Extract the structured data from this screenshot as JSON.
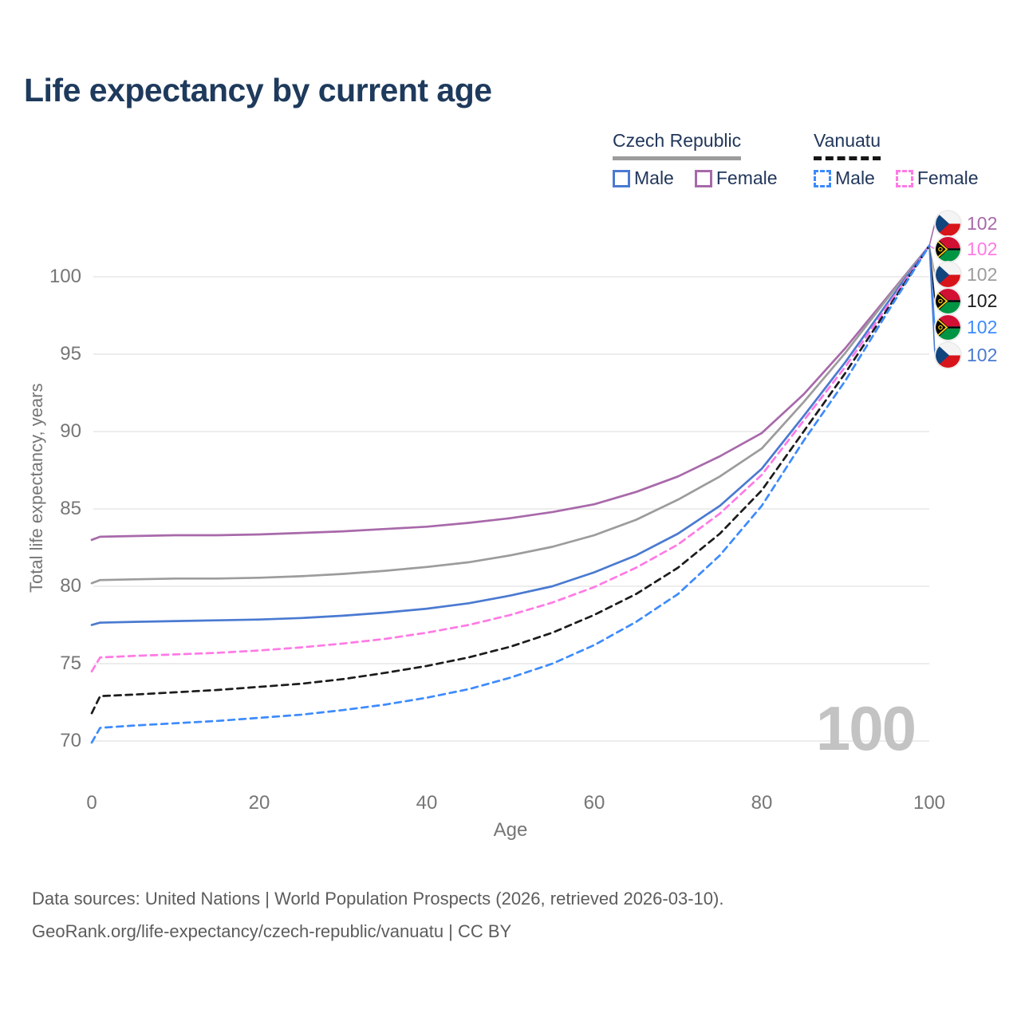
{
  "title": "Life expectancy by current age",
  "legend": {
    "groups": [
      {
        "name": "Czech Republic",
        "line_style": "solid",
        "underline_color": "#9c9c9c",
        "items": [
          {
            "label": "Male",
            "color": "#4a7ad1",
            "dash": false
          },
          {
            "label": "Female",
            "color": "#a869aa",
            "dash": false
          }
        ]
      },
      {
        "name": "Vanuatu",
        "line_style": "dashed",
        "underline_color": "#161616",
        "items": [
          {
            "label": "Male",
            "color": "#3d8bfd",
            "dash": true
          },
          {
            "label": "Female",
            "color": "#ff7ae5",
            "dash": true
          }
        ]
      }
    ]
  },
  "chart_data": {
    "type": "line",
    "title": "Life expectancy by current age",
    "xlabel": "Age",
    "ylabel": "Total life expectancy, years",
    "xlim": [
      0,
      100
    ],
    "ylim": [
      68.5,
      103
    ],
    "xticks": [
      0,
      20,
      40,
      60,
      80,
      100
    ],
    "yticks": [
      70,
      75,
      80,
      85,
      90,
      95,
      100
    ],
    "grid": "horizontal",
    "legend_position": "top-right",
    "watermark": "100",
    "x": [
      0,
      1,
      5,
      10,
      15,
      20,
      25,
      30,
      35,
      40,
      45,
      50,
      55,
      60,
      65,
      70,
      75,
      80,
      85,
      90,
      95,
      100
    ],
    "series": [
      {
        "name": "Czech Republic Female",
        "country": "Czech Republic",
        "sex": "Female",
        "color": "#a869aa",
        "dash": false,
        "values": [
          83.0,
          83.2,
          83.25,
          83.3,
          83.3,
          83.35,
          83.45,
          83.55,
          83.7,
          83.85,
          84.1,
          84.4,
          84.8,
          85.3,
          86.1,
          87.1,
          88.4,
          89.9,
          92.4,
          95.4,
          98.7,
          102.0
        ]
      },
      {
        "name": "Czech Republic Both sexes",
        "country": "Czech Republic",
        "sex": "Both",
        "color": "#9c9c9c",
        "dash": false,
        "values": [
          80.2,
          80.4,
          80.45,
          80.5,
          80.5,
          80.55,
          80.65,
          80.8,
          81.0,
          81.25,
          81.55,
          82.0,
          82.55,
          83.3,
          84.3,
          85.6,
          87.1,
          88.9,
          91.9,
          95.1,
          98.6,
          102.0
        ]
      },
      {
        "name": "Czech Republic Male",
        "country": "Czech Republic",
        "sex": "Male",
        "color": "#4a7ad1",
        "dash": false,
        "values": [
          77.5,
          77.65,
          77.7,
          77.75,
          77.8,
          77.85,
          77.95,
          78.1,
          78.3,
          78.55,
          78.9,
          79.4,
          80.0,
          80.9,
          82.0,
          83.4,
          85.2,
          87.6,
          91.0,
          94.5,
          98.3,
          102.0
        ]
      },
      {
        "name": "Vanuatu Female",
        "country": "Vanuatu",
        "sex": "Female",
        "color": "#ff7ae5",
        "dash": true,
        "values": [
          74.5,
          75.4,
          75.5,
          75.6,
          75.7,
          75.85,
          76.05,
          76.3,
          76.6,
          77.0,
          77.5,
          78.15,
          78.95,
          79.95,
          81.2,
          82.7,
          84.7,
          87.2,
          90.7,
          94.2,
          98.1,
          102.0
        ]
      },
      {
        "name": "Vanuatu Both sexes",
        "country": "Vanuatu",
        "sex": "Both",
        "color": "#1c1c1c",
        "dash": true,
        "values": [
          71.8,
          72.9,
          73.0,
          73.15,
          73.3,
          73.5,
          73.7,
          74.0,
          74.4,
          74.85,
          75.4,
          76.1,
          77.0,
          78.15,
          79.5,
          81.2,
          83.4,
          86.2,
          90.0,
          93.8,
          97.9,
          102.0
        ]
      },
      {
        "name": "Vanuatu Male",
        "country": "Vanuatu",
        "sex": "Male",
        "color": "#3d8bfd",
        "dash": true,
        "values": [
          69.9,
          70.85,
          71.0,
          71.15,
          71.3,
          71.5,
          71.7,
          72.0,
          72.35,
          72.8,
          73.35,
          74.1,
          75.0,
          76.2,
          77.7,
          79.5,
          82.0,
          85.2,
          89.4,
          93.3,
          97.7,
          102.0
        ]
      }
    ],
    "end_labels": [
      {
        "flag": "czech",
        "value": "102",
        "color": "#a869aa",
        "series": "Czech Republic Female"
      },
      {
        "flag": "vanuatu",
        "value": "102",
        "color": "#ff7ae5",
        "series": "Vanuatu Female"
      },
      {
        "flag": "czech",
        "value": "102",
        "color": "#9c9c9c",
        "series": "Czech Republic Both sexes"
      },
      {
        "flag": "vanuatu",
        "value": "102",
        "color": "#1c1c1c",
        "series": "Vanuatu Both sexes"
      },
      {
        "flag": "vanuatu",
        "value": "102",
        "color": "#3d8bfd",
        "series": "Vanuatu Male"
      },
      {
        "flag": "czech",
        "value": "102",
        "color": "#4a7ad1",
        "series": "Czech Republic Male"
      }
    ]
  },
  "footer": {
    "line1": "Data sources: United Nations | World Population Prospects (2026, retrieved 2026-03-10).",
    "line2": "GeoRank.org/life-expectancy/czech-republic/vanuatu | CC BY"
  }
}
